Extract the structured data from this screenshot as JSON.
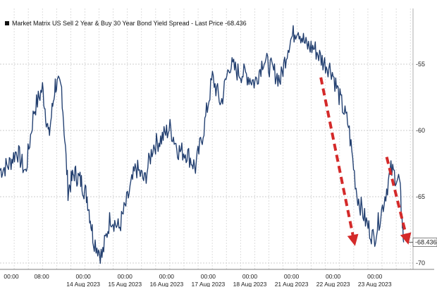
{
  "chart_data": {
    "type": "line",
    "title": "",
    "legend_label": "Market Matrix US Sell 2 Year & Buy 30 Year Bond Yield Spread - Last Price -68.436",
    "last_value_label": "-68.436",
    "last_value": -68.436,
    "xlabel": "",
    "ylabel": "",
    "ylim": [
      -70.5,
      -49.5
    ],
    "y_ticks": [
      -55,
      -60,
      -65,
      -70
    ],
    "y_tick_labels": [
      "-55",
      "-60",
      "-65",
      "-70"
    ],
    "grid": true,
    "legend_position": "top-left",
    "x_ticks": [
      {
        "time": "00:00",
        "date": ""
      },
      {
        "time": "08:00",
        "date": ""
      },
      {
        "time": "00:00",
        "date": "14 Aug 2023"
      },
      {
        "time": "00:00",
        "date": "15 Aug 2023"
      },
      {
        "time": "00:00",
        "date": "16 Aug 2023"
      },
      {
        "time": "00:00",
        "date": "17 Aug 2023"
      },
      {
        "time": "00:00",
        "date": "18 Aug 2023"
      },
      {
        "time": "00:00",
        "date": "21 Aug 2023"
      },
      {
        "time": "00:00",
        "date": "22 Aug 2023"
      },
      {
        "time": "00:00",
        "date": "23 Aug 2023"
      }
    ],
    "series": [
      {
        "name": "Market Matrix US Sell 2 Year & Buy 30 Year Bond Yield Spread",
        "color": "#2e4f86",
        "x": [
          0,
          0.2,
          0.4,
          0.6,
          0.8,
          1.0,
          1.15,
          1.3,
          1.45,
          1.6,
          1.75,
          1.9,
          2.05,
          2.2,
          2.4,
          2.6,
          2.8,
          3.0,
          3.2,
          3.4,
          3.6,
          3.8,
          4.0,
          4.2,
          4.4,
          4.6,
          4.8,
          5.0,
          5.2,
          5.4,
          5.6,
          5.8,
          6.0,
          6.2,
          6.4,
          6.6,
          6.8,
          7.0,
          7.2,
          7.4,
          7.6,
          7.8,
          8.0,
          8.2,
          8.4,
          8.6,
          8.8,
          9.0,
          9.2,
          9.4,
          9.5
        ],
        "values": [
          -63.0,
          -62.6,
          -61.5,
          -63.2,
          -58.5,
          -56.8,
          -60.5,
          -56.5,
          -56.8,
          -64.5,
          -63.2,
          -63.8,
          -65.0,
          -68.2,
          -69.5,
          -66.5,
          -67.4,
          -65.2,
          -62.8,
          -63.8,
          -61.2,
          -60.6,
          -59.8,
          -61.5,
          -61.7,
          -62.8,
          -59.8,
          -56.0,
          -58.0,
          -55.0,
          -55.6,
          -55.8,
          -56.4,
          -54.6,
          -55.4,
          -56.2,
          -53.4,
          -52.2,
          -53.6,
          -53.8,
          -54.8,
          -55.4,
          -57.6,
          -59.6,
          -64.8,
          -66.8,
          -68.2,
          -65.8,
          -63.0,
          -63.8,
          -68.436
        ]
      }
    ]
  },
  "annotations": {
    "arrow_color": "#d42a2a",
    "arrows": [
      {
        "from": {
          "x": 7.55,
          "y": -56.0
        },
        "to": {
          "x": 8.33,
          "y": -68.3
        }
      },
      {
        "from": {
          "x": 9.1,
          "y": -62.0
        },
        "to": {
          "x": 9.58,
          "y": -68.2
        }
      }
    ]
  }
}
